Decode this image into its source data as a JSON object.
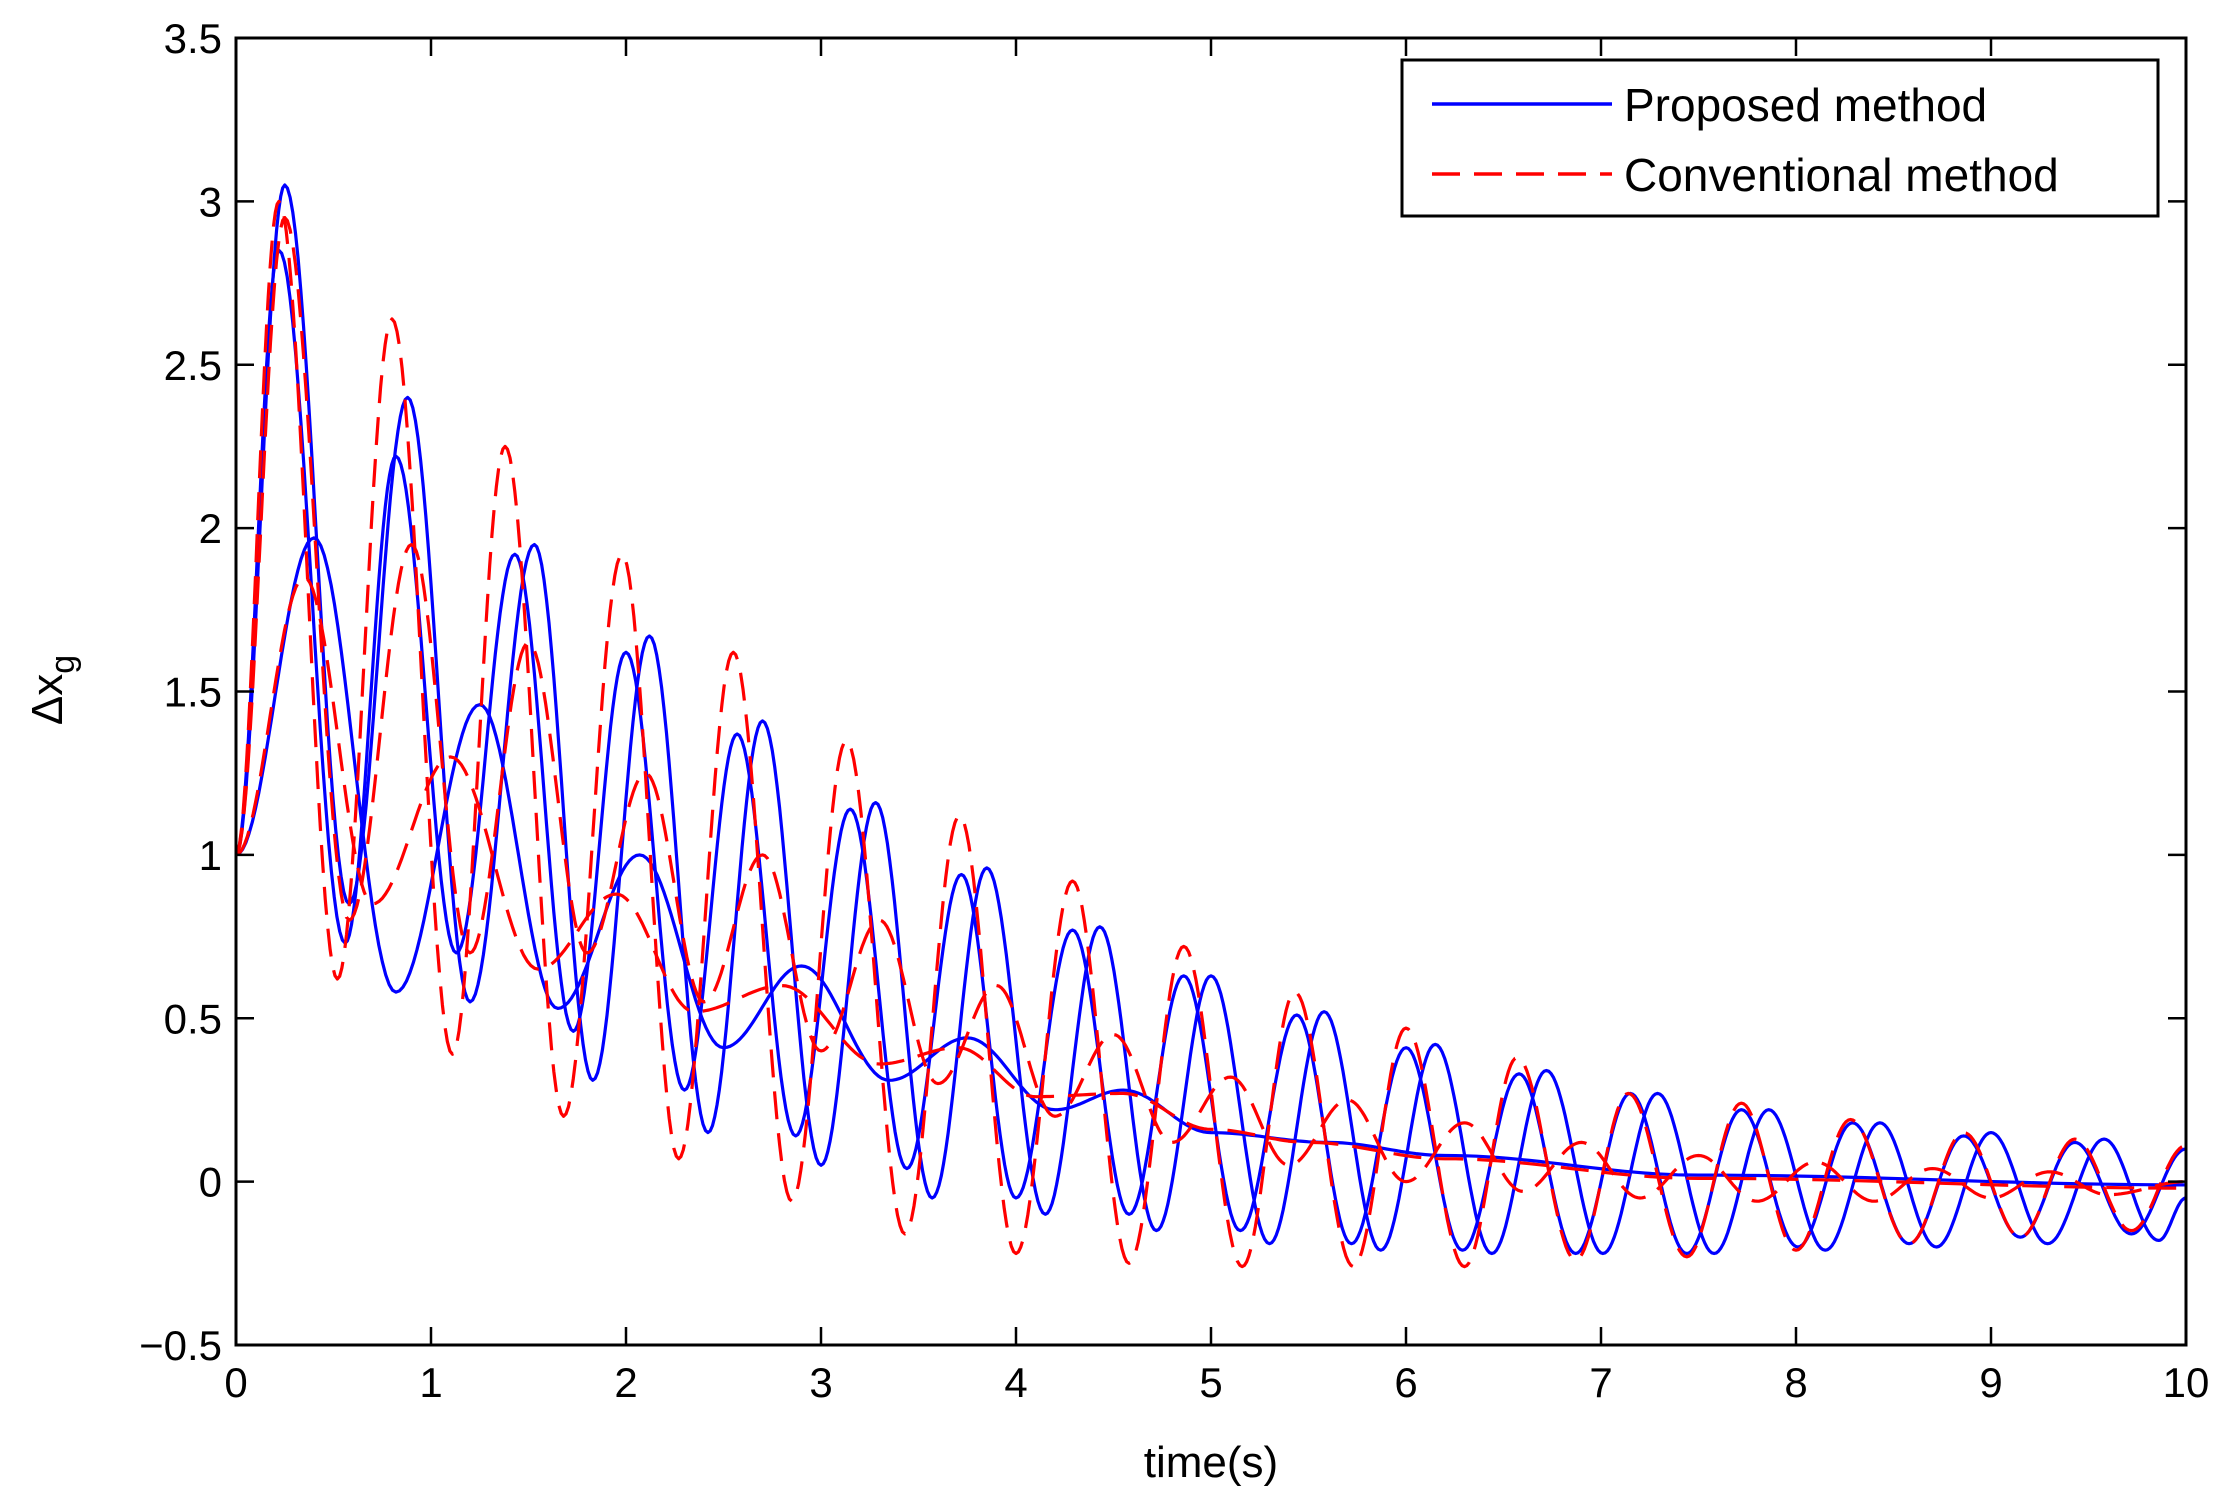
{
  "chart_data": {
    "type": "line",
    "title": "",
    "xlabel": "time(s)",
    "ylabel_main": "Δx",
    "ylabel_sub": "g",
    "xlim": [
      0,
      10
    ],
    "ylim": [
      -0.5,
      3.5
    ],
    "xticks": [
      0,
      1,
      2,
      3,
      4,
      5,
      6,
      7,
      8,
      9,
      10
    ],
    "xtick_labels": [
      "0",
      "1",
      "2",
      "3",
      "4",
      "5",
      "6",
      "7",
      "8",
      "9",
      "10"
    ],
    "yticks": [
      -0.5,
      0,
      0.5,
      1,
      1.5,
      2,
      2.5,
      3,
      3.5
    ],
    "ytick_labels": [
      "−0.5",
      "0",
      "0.5",
      "1",
      "1.5",
      "2",
      "2.5",
      "3",
      "3.5"
    ],
    "legend": {
      "position": "top-right",
      "entries": [
        {
          "label": "Proposed method",
          "color": "#0000ff",
          "style": "solid"
        },
        {
          "label": "Conventional method",
          "color": "#ff0000",
          "style": "dashed"
        }
      ]
    },
    "series": [
      {
        "name": "Proposed method",
        "group": 0,
        "color": "#0000ff",
        "style": "solid",
        "peak_points": [
          [
            0,
            1.0
          ],
          [
            0.4,
            1.97
          ],
          [
            0.82,
            0.58
          ],
          [
            1.25,
            1.46
          ],
          [
            1.65,
            0.53
          ],
          [
            2.07,
            1.0
          ],
          [
            2.5,
            0.41
          ],
          [
            2.9,
            0.66
          ],
          [
            3.35,
            0.31
          ],
          [
            3.75,
            0.44
          ],
          [
            4.2,
            0.22
          ],
          [
            4.55,
            0.28
          ],
          [
            5.0,
            0.15
          ],
          [
            5.6,
            0.12
          ],
          [
            6.2,
            0.08
          ],
          [
            7.5,
            0.02
          ],
          [
            10.0,
            -0.01
          ]
        ]
      },
      {
        "name": "Proposed method",
        "group": 1,
        "color": "#0000ff",
        "style": "solid",
        "peak_points": [
          [
            0,
            1.0
          ],
          [
            0.22,
            2.85
          ],
          [
            0.56,
            0.73
          ],
          [
            0.82,
            2.22
          ],
          [
            1.13,
            0.7
          ],
          [
            1.43,
            1.92
          ],
          [
            1.73,
            0.46
          ],
          [
            2.0,
            1.62
          ],
          [
            2.3,
            0.28
          ],
          [
            2.57,
            1.37
          ],
          [
            2.87,
            0.14
          ],
          [
            3.15,
            1.14
          ],
          [
            3.44,
            0.04
          ],
          [
            3.72,
            0.94
          ],
          [
            4.0,
            -0.05
          ],
          [
            4.29,
            0.77
          ],
          [
            4.58,
            -0.1
          ],
          [
            4.86,
            0.63
          ],
          [
            5.15,
            -0.15
          ],
          [
            5.44,
            0.51
          ],
          [
            5.72,
            -0.19
          ],
          [
            6.0,
            0.41
          ],
          [
            6.29,
            -0.21
          ],
          [
            6.58,
            0.33
          ],
          [
            6.87,
            -0.22
          ],
          [
            7.15,
            0.27
          ],
          [
            7.44,
            -0.22
          ],
          [
            7.72,
            0.22
          ],
          [
            8.01,
            -0.2
          ],
          [
            8.29,
            0.18
          ],
          [
            8.58,
            -0.19
          ],
          [
            8.86,
            0.14
          ],
          [
            9.15,
            -0.17
          ],
          [
            9.43,
            0.12
          ],
          [
            9.72,
            -0.16
          ],
          [
            10.0,
            0.1
          ]
        ]
      },
      {
        "name": "Proposed method",
        "group": 2,
        "color": "#0000ff",
        "style": "solid",
        "peak_points": [
          [
            0,
            1.0
          ],
          [
            0.25,
            3.05
          ],
          [
            0.58,
            0.85
          ],
          [
            0.88,
            2.4
          ],
          [
            1.2,
            0.55
          ],
          [
            1.53,
            1.95
          ],
          [
            1.83,
            0.31
          ],
          [
            2.12,
            1.67
          ],
          [
            2.42,
            0.15
          ],
          [
            2.7,
            1.41
          ],
          [
            3.0,
            0.05
          ],
          [
            3.28,
            1.16
          ],
          [
            3.57,
            -0.05
          ],
          [
            3.85,
            0.96
          ],
          [
            4.15,
            -0.1
          ],
          [
            4.43,
            0.78
          ],
          [
            4.72,
            -0.15
          ],
          [
            5.0,
            0.63
          ],
          [
            5.3,
            -0.19
          ],
          [
            5.58,
            0.52
          ],
          [
            5.87,
            -0.21
          ],
          [
            6.15,
            0.42
          ],
          [
            6.44,
            -0.22
          ],
          [
            6.72,
            0.34
          ],
          [
            7.01,
            -0.22
          ],
          [
            7.29,
            0.27
          ],
          [
            7.58,
            -0.22
          ],
          [
            7.86,
            0.22
          ],
          [
            8.15,
            -0.21
          ],
          [
            8.43,
            0.18
          ],
          [
            8.72,
            -0.2
          ],
          [
            9.0,
            0.15
          ],
          [
            9.29,
            -0.19
          ],
          [
            9.58,
            0.13
          ],
          [
            9.86,
            -0.18
          ],
          [
            10.0,
            -0.05
          ]
        ]
      },
      {
        "name": "Conventional method",
        "group": 0,
        "color": "#ff0000",
        "style": "dashed",
        "peak_points": [
          [
            0,
            1.0
          ],
          [
            0.35,
            1.85
          ],
          [
            0.7,
            0.85
          ],
          [
            1.1,
            1.3
          ],
          [
            1.55,
            0.65
          ],
          [
            1.95,
            0.88
          ],
          [
            2.35,
            0.52
          ],
          [
            2.8,
            0.6
          ],
          [
            3.3,
            0.36
          ],
          [
            3.7,
            0.41
          ],
          [
            4.1,
            0.26
          ],
          [
            4.55,
            0.27
          ],
          [
            5.0,
            0.16
          ],
          [
            5.5,
            0.12
          ],
          [
            6.2,
            0.07
          ],
          [
            7.5,
            0.01
          ],
          [
            10.0,
            -0.02
          ]
        ]
      },
      {
        "name": "Conventional method",
        "group": 1,
        "color": "#ff0000",
        "style": "dashed",
        "peak_points": [
          [
            0,
            1.0
          ],
          [
            0.22,
            3.0
          ],
          [
            0.52,
            0.62
          ],
          [
            0.8,
            2.64
          ],
          [
            1.11,
            0.39
          ],
          [
            1.38,
            2.25
          ],
          [
            1.68,
            0.2
          ],
          [
            1.98,
            1.92
          ],
          [
            2.27,
            0.07
          ],
          [
            2.55,
            1.62
          ],
          [
            2.85,
            -0.06
          ],
          [
            3.13,
            1.35
          ],
          [
            3.43,
            -0.16
          ],
          [
            3.71,
            1.12
          ],
          [
            4.0,
            -0.22
          ],
          [
            4.29,
            0.92
          ],
          [
            4.58,
            -0.25
          ],
          [
            4.86,
            0.72
          ],
          [
            5.16,
            -0.26
          ],
          [
            5.43,
            0.58
          ],
          [
            5.73,
            -0.26
          ],
          [
            6.0,
            0.47
          ],
          [
            6.3,
            -0.26
          ],
          [
            6.57,
            0.38
          ],
          [
            6.87,
            -0.24
          ],
          [
            7.14,
            0.27
          ],
          [
            7.44,
            -0.23
          ],
          [
            7.72,
            0.24
          ],
          [
            8.0,
            -0.21
          ],
          [
            8.28,
            0.19
          ],
          [
            8.58,
            -0.19
          ],
          [
            8.86,
            0.15
          ],
          [
            9.15,
            -0.17
          ],
          [
            9.43,
            0.13
          ],
          [
            9.72,
            -0.15
          ],
          [
            10.0,
            0.11
          ]
        ]
      },
      {
        "name": "Conventional method",
        "group": 2,
        "color": "#ff0000",
        "style": "dashed",
        "peak_points": [
          [
            0,
            1.0
          ],
          [
            0.25,
            2.95
          ],
          [
            0.58,
            0.8
          ],
          [
            0.9,
            1.95
          ],
          [
            1.2,
            0.7
          ],
          [
            1.5,
            1.65
          ],
          [
            1.8,
            0.7
          ],
          [
            2.1,
            1.25
          ],
          [
            2.4,
            0.55
          ],
          [
            2.7,
            1.0
          ],
          [
            3.0,
            0.4
          ],
          [
            3.3,
            0.8
          ],
          [
            3.6,
            0.3
          ],
          [
            3.9,
            0.6
          ],
          [
            4.2,
            0.2
          ],
          [
            4.5,
            0.45
          ],
          [
            4.8,
            0.12
          ],
          [
            5.1,
            0.32
          ],
          [
            5.4,
            0.05
          ],
          [
            5.7,
            0.25
          ],
          [
            6.0,
            0.0
          ],
          [
            6.3,
            0.18
          ],
          [
            6.6,
            -0.03
          ],
          [
            6.9,
            0.12
          ],
          [
            7.2,
            -0.05
          ],
          [
            7.5,
            0.08
          ],
          [
            7.8,
            -0.06
          ],
          [
            8.1,
            0.06
          ],
          [
            8.4,
            -0.06
          ],
          [
            8.7,
            0.04
          ],
          [
            9.0,
            -0.05
          ],
          [
            9.3,
            0.03
          ],
          [
            9.6,
            -0.04
          ],
          [
            10.0,
            0.0
          ]
        ]
      }
    ]
  }
}
